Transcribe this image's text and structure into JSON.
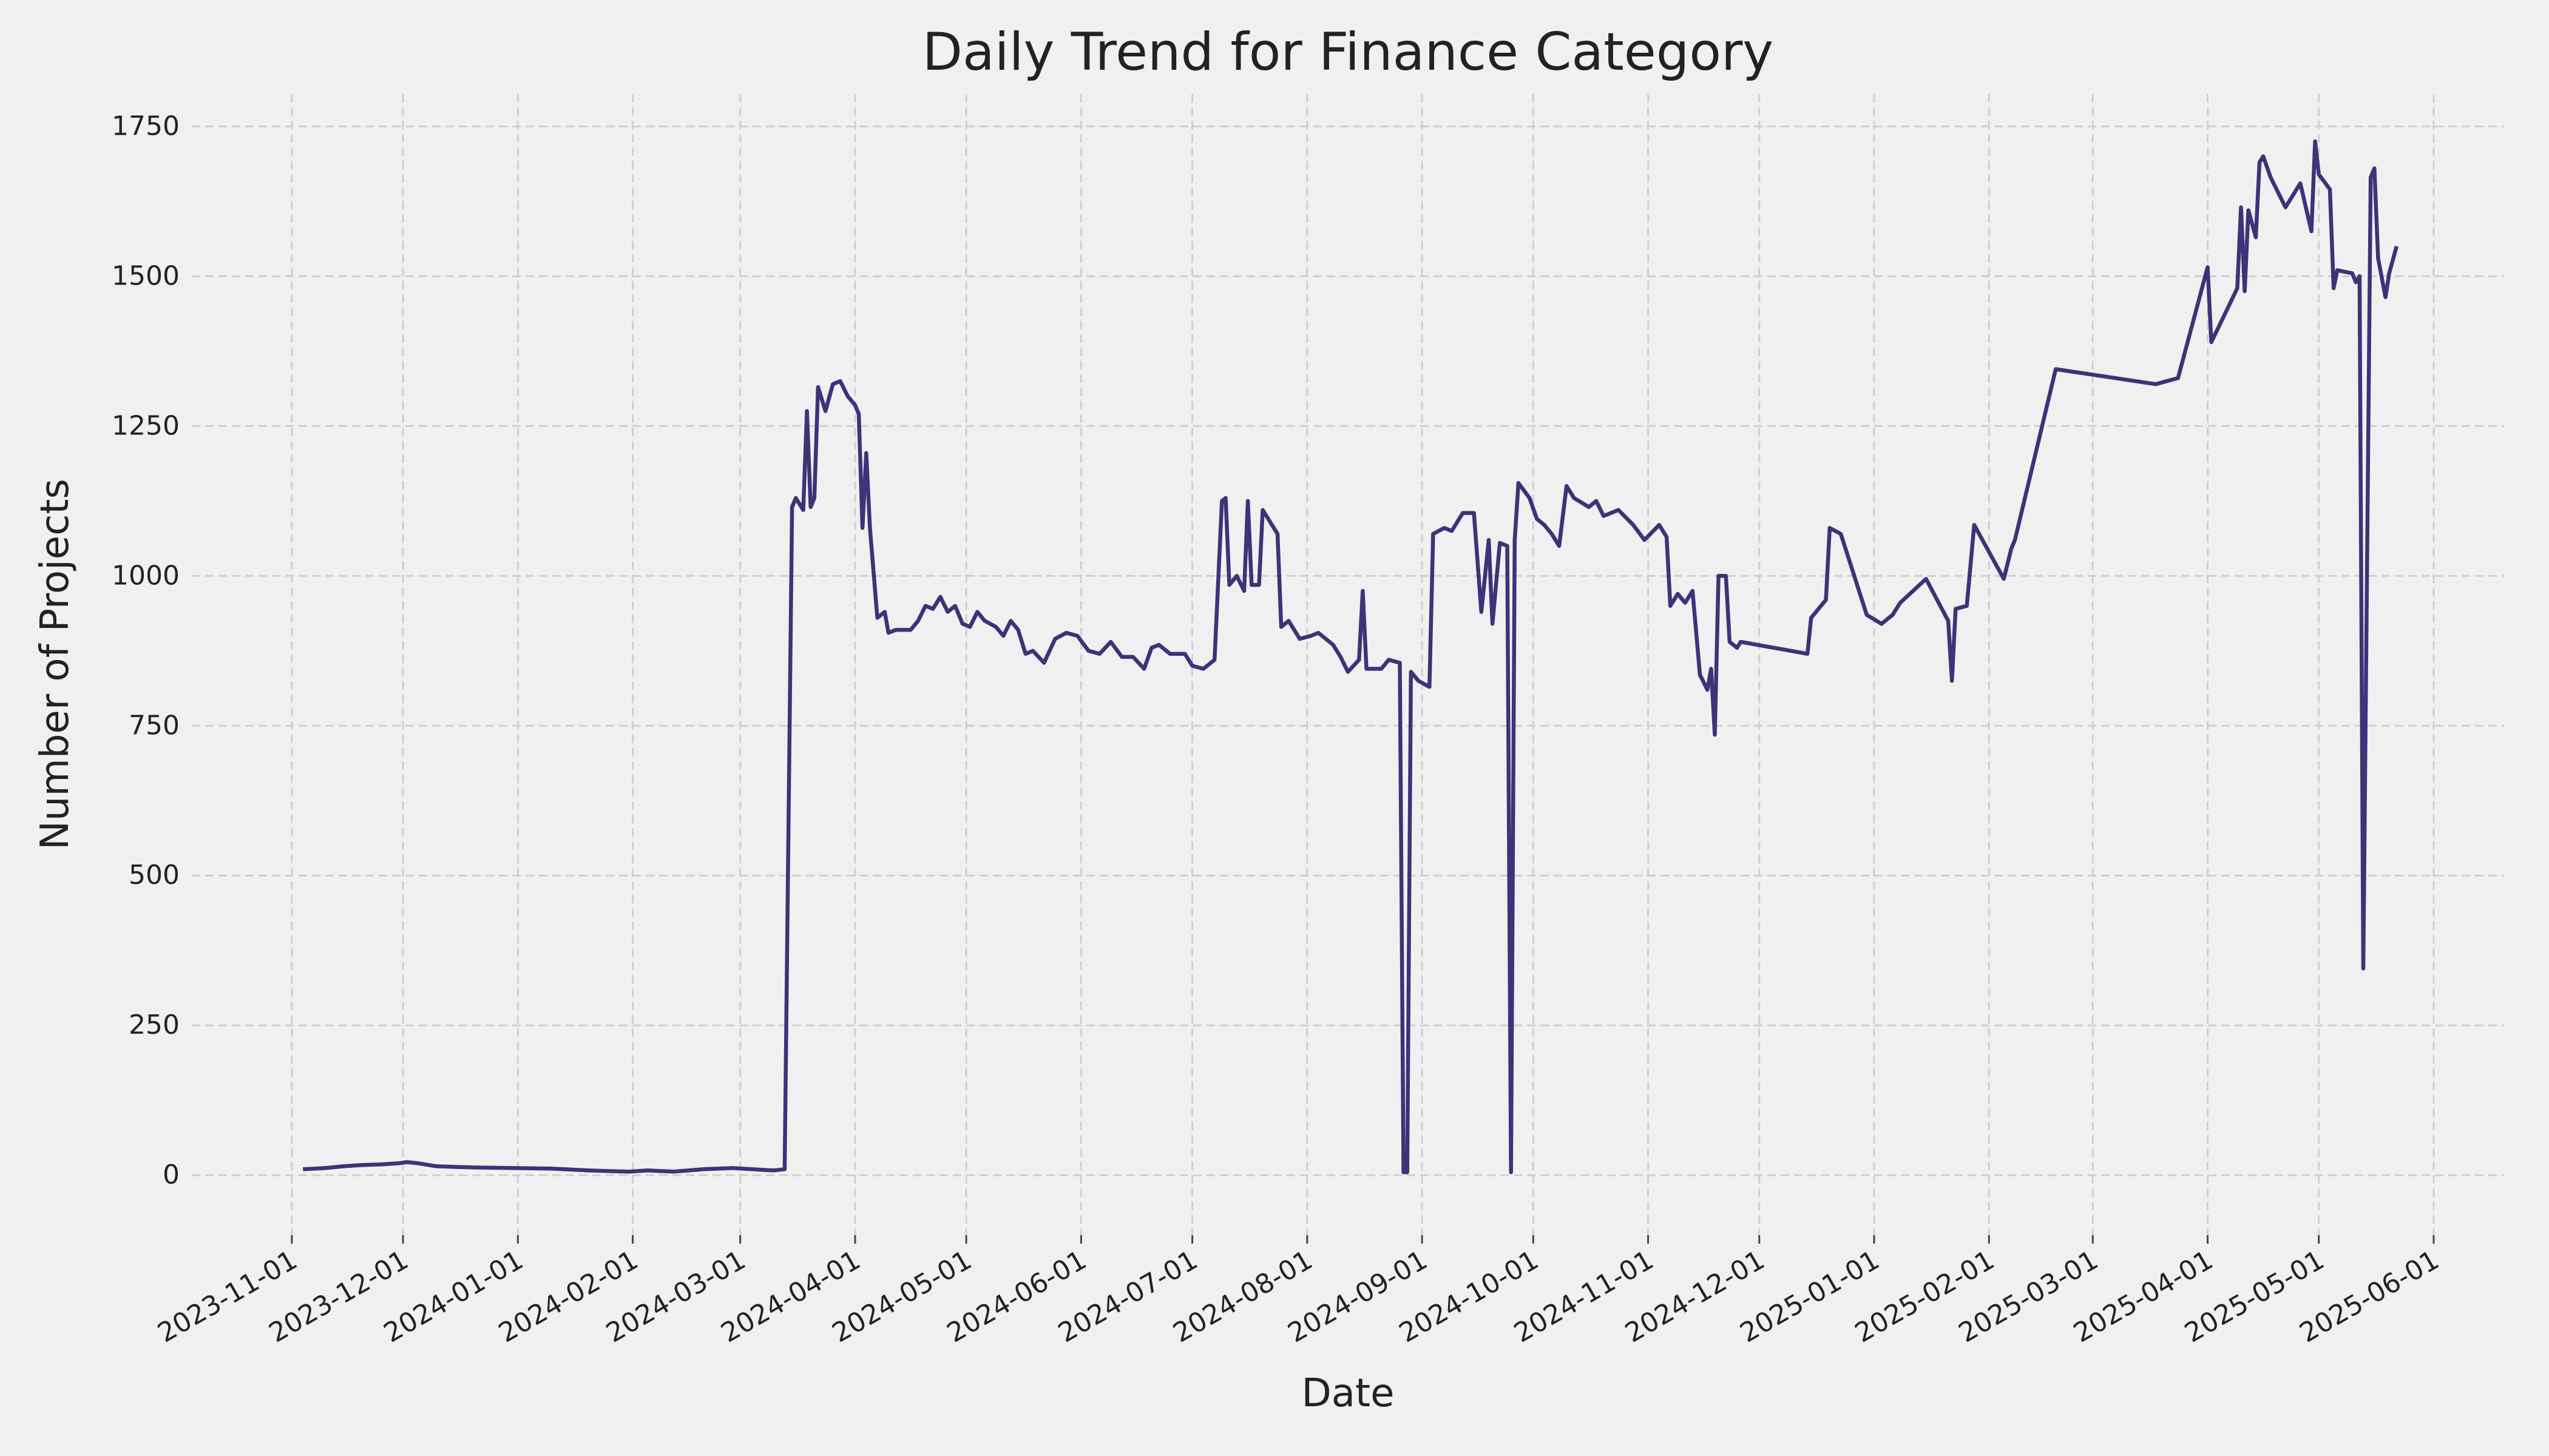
{
  "chart_data": {
    "type": "line",
    "title": "Daily Trend for Finance Category",
    "xlabel": "Date",
    "ylabel": "Number of Projects",
    "grid": true,
    "xlim": [
      "2023-10-05",
      "2025-06-20"
    ],
    "xticks": [
      "2023-11-01",
      "2023-12-01",
      "2024-01-01",
      "2024-02-01",
      "2024-03-01",
      "2024-04-01",
      "2024-05-01",
      "2024-06-01",
      "2024-07-01",
      "2024-08-01",
      "2024-09-01",
      "2024-10-01",
      "2024-11-01",
      "2024-12-01",
      "2025-01-01",
      "2025-02-01",
      "2025-03-01",
      "2025-04-01",
      "2025-05-01",
      "2025-06-01"
    ],
    "ylim": [
      -100,
      1804
    ],
    "yticks": [
      0,
      250,
      500,
      750,
      1000,
      1250,
      1500,
      1750
    ],
    "x": [
      "2023-11-04",
      "2023-11-10",
      "2023-11-15",
      "2023-11-20",
      "2023-11-25",
      "2023-11-30",
      "2023-12-02",
      "2023-12-05",
      "2023-12-10",
      "2023-12-20",
      "2023-12-31",
      "2024-01-10",
      "2024-01-20",
      "2024-01-31",
      "2024-02-05",
      "2024-02-12",
      "2024-02-20",
      "2024-02-28",
      "2024-03-10",
      "2024-03-13",
      "2024-03-15",
      "2024-03-16",
      "2024-03-18",
      "2024-03-19",
      "2024-03-20",
      "2024-03-21",
      "2024-03-22",
      "2024-03-24",
      "2024-03-26",
      "2024-03-28",
      "2024-03-30",
      "2024-04-01",
      "2024-04-02",
      "2024-04-03",
      "2024-04-04",
      "2024-04-05",
      "2024-04-07",
      "2024-04-09",
      "2024-04-10",
      "2024-04-12",
      "2024-04-16",
      "2024-04-18",
      "2024-04-20",
      "2024-04-22",
      "2024-04-24",
      "2024-04-26",
      "2024-04-28",
      "2024-04-30",
      "2024-05-02",
      "2024-05-04",
      "2024-05-06",
      "2024-05-09",
      "2024-05-11",
      "2024-05-13",
      "2024-05-15",
      "2024-05-17",
      "2024-05-19",
      "2024-05-22",
      "2024-05-25",
      "2024-05-28",
      "2024-05-31",
      "2024-06-03",
      "2024-06-06",
      "2024-06-09",
      "2024-06-12",
      "2024-06-15",
      "2024-06-18",
      "2024-06-20",
      "2024-06-22",
      "2024-06-25",
      "2024-06-29",
      "2024-07-01",
      "2024-07-04",
      "2024-07-07",
      "2024-07-09",
      "2024-07-10",
      "2024-07-11",
      "2024-07-13",
      "2024-07-15",
      "2024-07-16",
      "2024-07-17",
      "2024-07-19",
      "2024-07-20",
      "2024-07-24",
      "2024-07-25",
      "2024-07-27",
      "2024-07-30",
      "2024-08-02",
      "2024-08-04",
      "2024-08-06",
      "2024-08-08",
      "2024-08-10",
      "2024-08-12",
      "2024-08-15",
      "2024-08-16",
      "2024-08-17",
      "2024-08-21",
      "2024-08-23",
      "2024-08-26",
      "2024-08-27",
      "2024-08-28",
      "2024-08-29",
      "2024-08-31",
      "2024-09-03",
      "2024-09-04",
      "2024-09-07",
      "2024-09-09",
      "2024-09-12",
      "2024-09-15",
      "2024-09-17",
      "2024-09-19",
      "2024-09-20",
      "2024-09-22",
      "2024-09-24",
      "2024-09-25",
      "2024-09-26",
      "2024-09-27",
      "2024-09-30",
      "2024-10-02",
      "2024-10-04",
      "2024-10-06",
      "2024-10-08",
      "2024-10-10",
      "2024-10-12",
      "2024-10-16",
      "2024-10-18",
      "2024-10-20",
      "2024-10-24",
      "2024-10-28",
      "2024-10-31",
      "2024-11-04",
      "2024-11-06",
      "2024-11-07",
      "2024-11-09",
      "2024-11-11",
      "2024-11-13",
      "2024-11-15",
      "2024-11-17",
      "2024-11-18",
      "2024-11-19",
      "2024-11-20",
      "2024-11-22",
      "2024-11-23",
      "2024-11-25",
      "2024-11-26",
      "2024-12-14",
      "2024-12-15",
      "2024-12-17",
      "2024-12-19",
      "2024-12-20",
      "2024-12-23",
      "2024-12-30",
      "2025-01-03",
      "2025-01-06",
      "2025-01-08",
      "2025-01-15",
      "2025-01-21",
      "2025-01-22",
      "2025-01-23",
      "2025-01-26",
      "2025-01-28",
      "2025-02-05",
      "2025-02-07",
      "2025-02-08",
      "2025-02-19",
      "2025-03-18",
      "2025-03-24",
      "2025-04-01",
      "2025-04-02",
      "2025-04-09",
      "2025-04-10",
      "2025-04-11",
      "2025-04-12",
      "2025-04-14",
      "2025-04-15",
      "2025-04-16",
      "2025-04-18",
      "2025-04-22",
      "2025-04-26",
      "2025-04-29",
      "2025-04-30",
      "2025-05-01",
      "2025-05-04",
      "2025-05-05",
      "2025-05-06",
      "2025-05-10",
      "2025-05-11",
      "2025-05-12",
      "2025-05-13",
      "2025-05-15",
      "2025-05-16",
      "2025-05-17",
      "2025-05-19",
      "2025-05-20",
      "2025-05-22"
    ],
    "series": [
      {
        "name": "Finance",
        "color": "#3f3278",
        "values": [
          10,
          12,
          15,
          17,
          18,
          20,
          22,
          20,
          15,
          13,
          12,
          11,
          8,
          6,
          8,
          6,
          10,
          12,
          8,
          10,
          1115,
          1130,
          1110,
          1275,
          1115,
          1130,
          1315,
          1275,
          1320,
          1325,
          1300,
          1285,
          1270,
          1080,
          1205,
          1080,
          930,
          940,
          905,
          910,
          910,
          925,
          950,
          945,
          965,
          940,
          950,
          920,
          915,
          940,
          925,
          915,
          900,
          925,
          910,
          870,
          875,
          855,
          895,
          905,
          900,
          875,
          870,
          890,
          865,
          865,
          845,
          880,
          885,
          870,
          870,
          850,
          845,
          860,
          1125,
          1130,
          985,
          1000,
          975,
          1125,
          985,
          985,
          1110,
          1070,
          915,
          925,
          895,
          900,
          905,
          895,
          885,
          865,
          840,
          860,
          975,
          845,
          845,
          860,
          855,
          5,
          5,
          840,
          825,
          815,
          1070,
          1080,
          1075,
          1105,
          1105,
          940,
          1060,
          920,
          1055,
          1050,
          5,
          1060,
          1155,
          1130,
          1095,
          1085,
          1070,
          1050,
          1150,
          1130,
          1115,
          1125,
          1100,
          1110,
          1085,
          1060,
          1085,
          1065,
          950,
          970,
          955,
          975,
          835,
          810,
          845,
          735,
          1000,
          1000,
          890,
          880,
          890,
          870,
          930,
          945,
          960,
          1080,
          1070,
          935,
          920,
          935,
          955,
          995,
          925,
          825,
          945,
          950,
          1085,
          995,
          1045,
          1060,
          1345,
          1320,
          1330,
          1515,
          1390,
          1480,
          1615,
          1475,
          1610,
          1565,
          1690,
          1700,
          1665,
          1615,
          1655,
          1575,
          1725,
          1670,
          1645,
          1480,
          1510,
          1505,
          1490,
          1500,
          345,
          1665,
          1680,
          1530,
          1465,
          1505,
          1550
        ]
      }
    ]
  }
}
